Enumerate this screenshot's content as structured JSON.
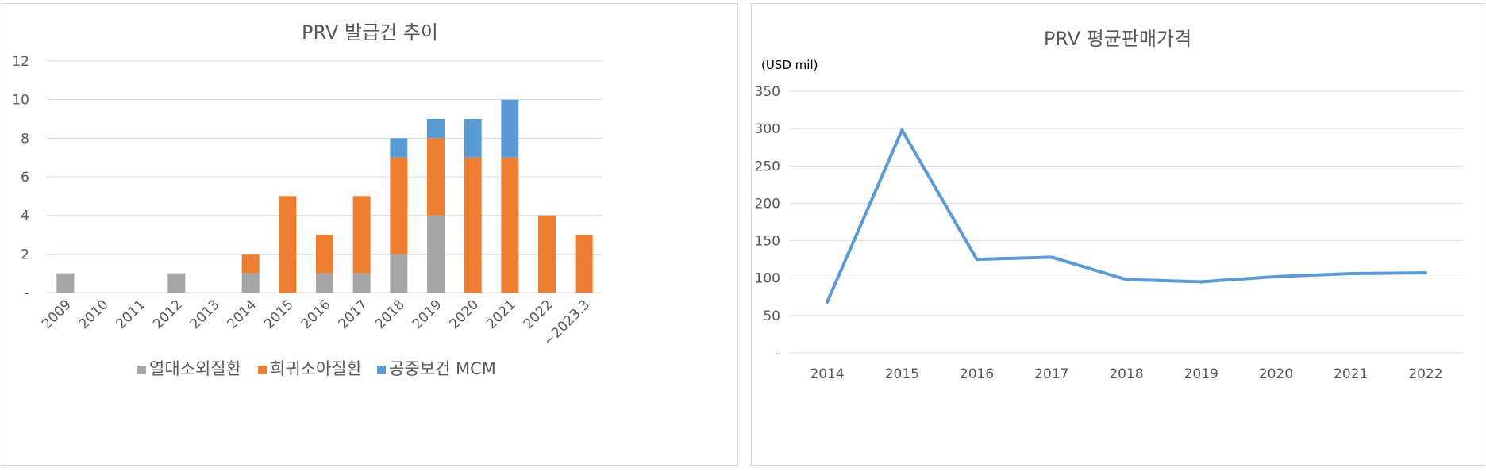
{
  "chart_data": [
    {
      "type": "bar",
      "stacked": true,
      "title": "PRV 발급건 추이",
      "categories": [
        "2009",
        "2010",
        "2011",
        "2012",
        "2013",
        "2014",
        "2015",
        "2016",
        "2017",
        "2018",
        "2019",
        "2020",
        "2021",
        "2022",
        "~2023.3"
      ],
      "series": [
        {
          "name": "열대소외질환",
          "color": "#a5a5a5",
          "values": [
            1,
            0,
            0,
            1,
            0,
            1,
            0,
            1,
            1,
            2,
            4,
            0,
            0,
            0,
            0
          ]
        },
        {
          "name": "희귀소아질환",
          "color": "#ed7d31",
          "values": [
            0,
            0,
            0,
            0,
            0,
            1,
            5,
            2,
            4,
            5,
            4,
            7,
            7,
            4,
            3
          ]
        },
        {
          "name": "공중보건 MCM",
          "color": "#5b9bd5",
          "values": [
            0,
            0,
            0,
            0,
            0,
            0,
            0,
            0,
            0,
            1,
            1,
            2,
            3,
            0,
            0
          ]
        }
      ],
      "ylim": [
        0,
        12
      ],
      "yticks": [
        0,
        2,
        4,
        6,
        8,
        10,
        12
      ],
      "ytick_labels": [
        "-",
        "2",
        "4",
        "6",
        "8",
        "10",
        "12"
      ],
      "grid": true,
      "legend": "bottom"
    },
    {
      "type": "line",
      "title": "PRV 평균판매가격",
      "unit_label": "(USD mil)",
      "categories": [
        "2014",
        "2015",
        "2016",
        "2017",
        "2018",
        "2019",
        "2020",
        "2021",
        "2022"
      ],
      "series": [
        {
          "color": "#5b9bd5",
          "values": [
            68,
            298,
            125,
            128,
            98,
            95,
            102,
            106,
            107
          ]
        }
      ],
      "ylim": [
        0,
        350
      ],
      "yticks": [
        0,
        50,
        100,
        150,
        200,
        250,
        300,
        350
      ],
      "ytick_labels": [
        "-",
        "50",
        "100",
        "150",
        "200",
        "250",
        "300",
        "350"
      ],
      "grid": true,
      "legend": "none"
    }
  ]
}
